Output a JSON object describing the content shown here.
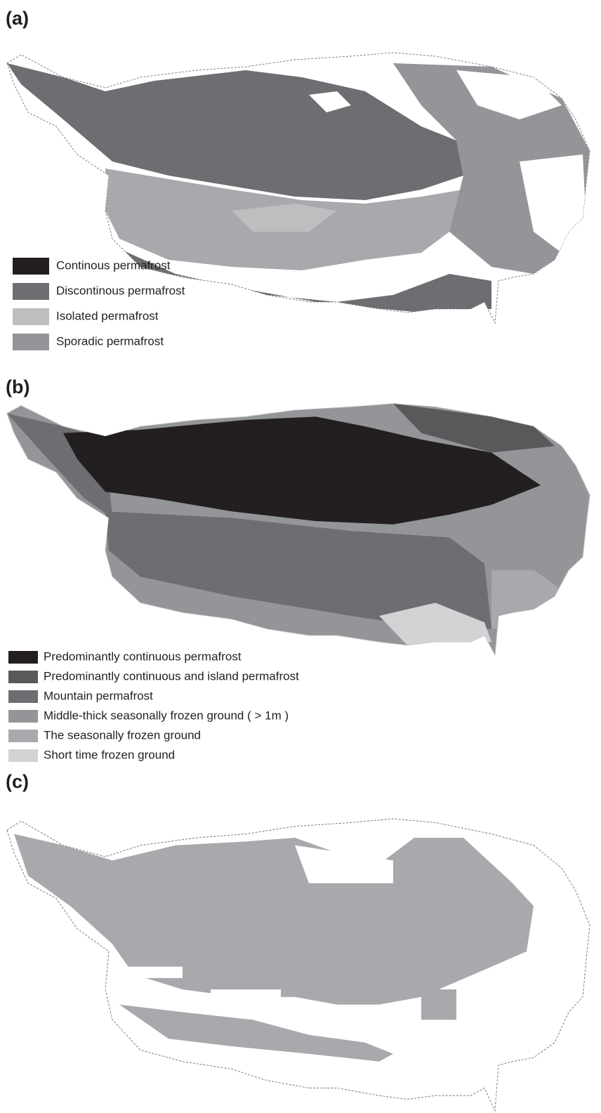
{
  "panels": [
    {
      "label": "(a)",
      "legend": [
        {
          "label": "Continous permafrost",
          "color": "#231f20"
        },
        {
          "label": "Discontinous permafrost",
          "color": "#6d6e71"
        },
        {
          "label": "Isolated permafrost",
          "color": "#bcbec0"
        },
        {
          "label": "Sporadic permafrost",
          "color": "#939598"
        }
      ]
    },
    {
      "label": "(b)",
      "legend": [
        {
          "label": "Predominantly continuous permafrost",
          "color": "#231f20"
        },
        {
          "label": "Predominantly continuous and island permafrost",
          "color": "#58595b"
        },
        {
          "label": "Mountain permafrost",
          "color": "#6d6e71"
        },
        {
          "label": "Middle-thick seasonally frozen ground ( > 1m )",
          "color": "#939598"
        },
        {
          "label": "The seasonally frozen ground",
          "color": "#a7a9ac"
        },
        {
          "label": "Short time frozen ground",
          "color": "#d1d3d4"
        }
      ]
    },
    {
      "label": "(c)",
      "legend": []
    }
  ]
}
